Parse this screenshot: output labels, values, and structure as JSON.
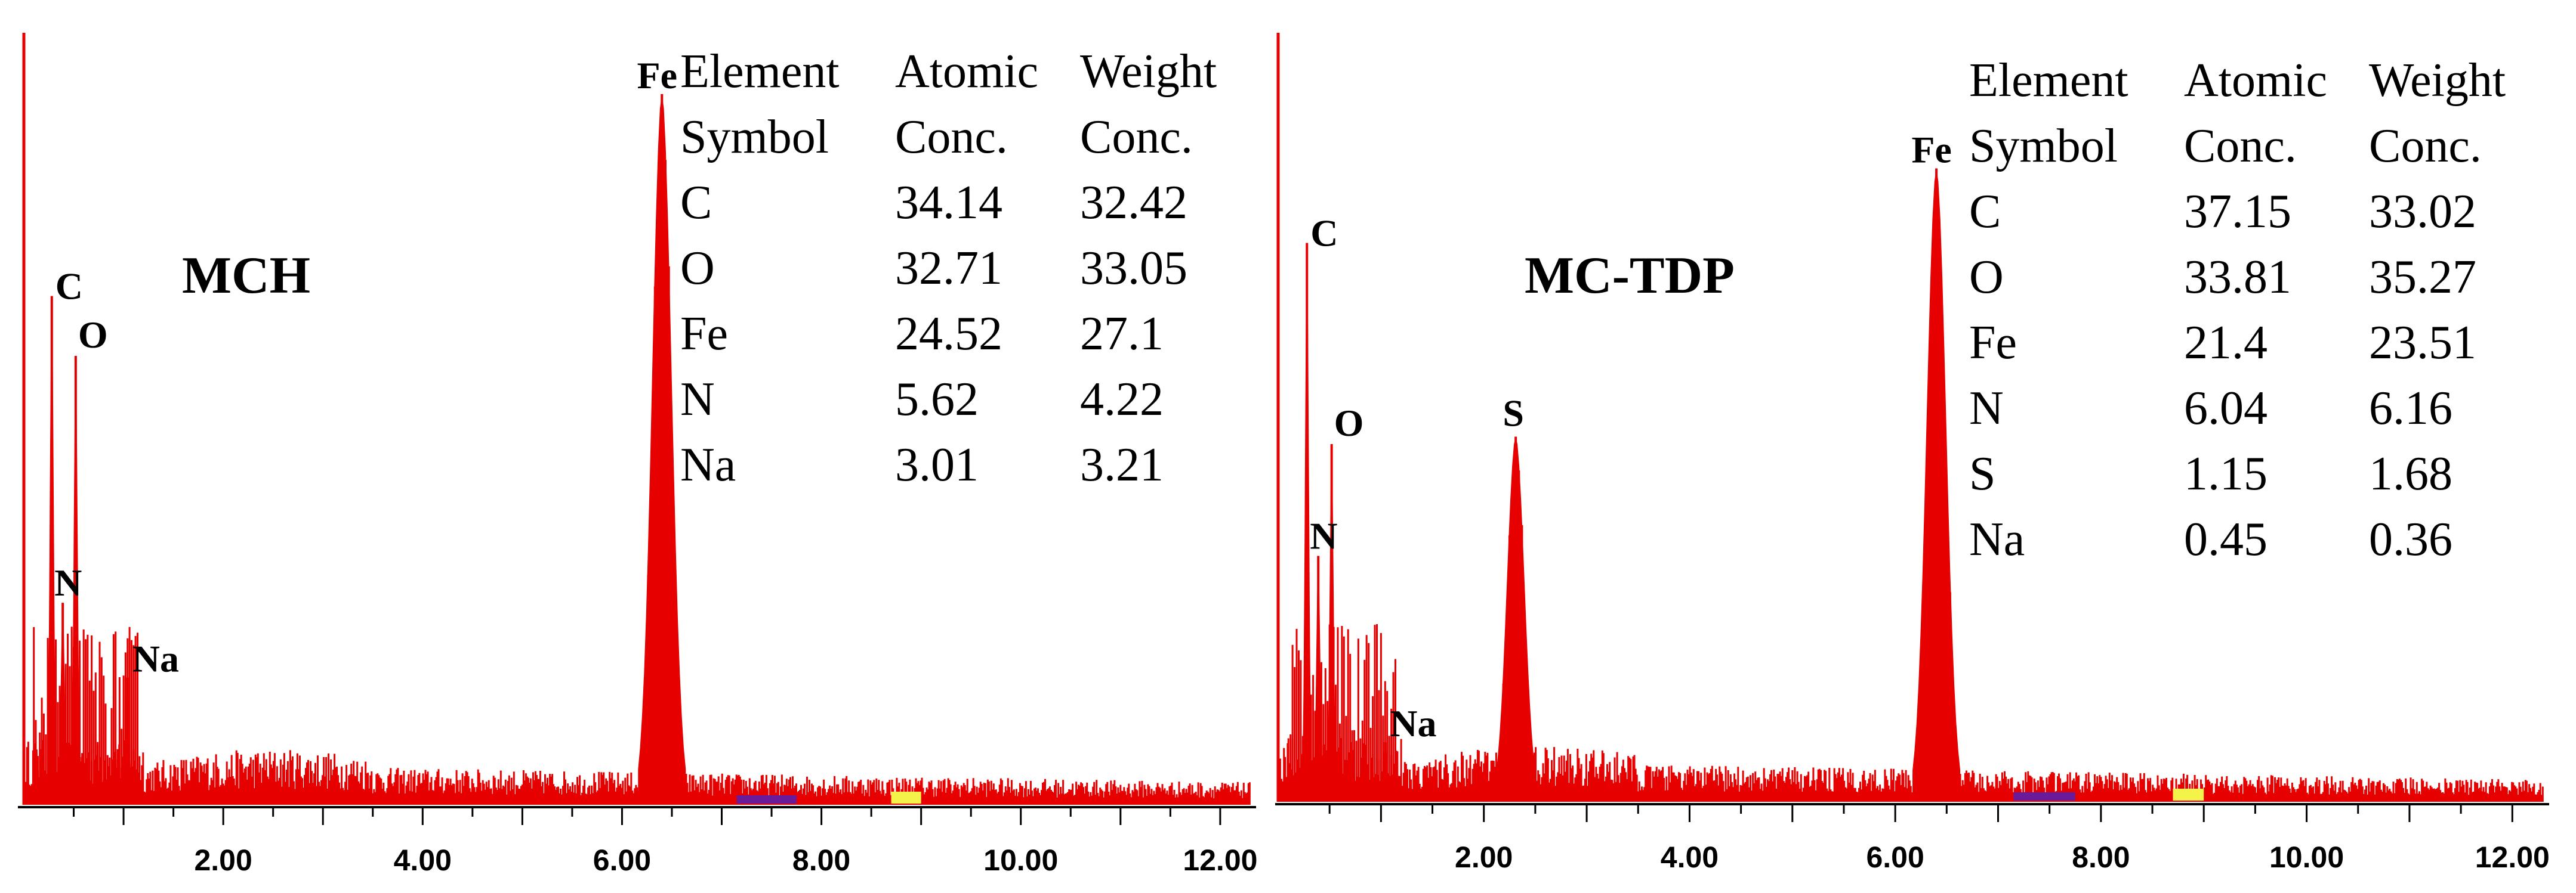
{
  "chart_data": [
    {
      "type": "bar",
      "title": "MCH",
      "xlim": [
        0,
        12.3
      ],
      "ylim": [
        0,
        100
      ],
      "x_ticks": [
        "2.00",
        "4.00",
        "6.00",
        "8.00",
        "10.00",
        "12.00"
      ],
      "x_tick_values": [
        2,
        4,
        6,
        8,
        10,
        12
      ],
      "peaks": [
        {
          "label": "C",
          "x": 0.28,
          "y": 68
        },
        {
          "label": "O",
          "x": 0.52,
          "y": 60
        },
        {
          "label": "N",
          "x": 0.39,
          "y": 27
        },
        {
          "label": "Na",
          "x": 1.04,
          "y": 17
        },
        {
          "label": "Fe",
          "x": 6.4,
          "y": 95
        }
      ],
      "colors": {
        "spectrum": "#e60000",
        "marker_purple": "#6a1b9a",
        "marker_yellow": "#f3f34a"
      },
      "table": {
        "headers": [
          [
            "Element",
            "Atomic",
            "Weight"
          ],
          [
            "Symbol",
            "Conc.",
            "Conc."
          ]
        ],
        "rows": [
          [
            "C",
            "34.14",
            "32.42"
          ],
          [
            "O",
            "32.71",
            "33.05"
          ],
          [
            "Fe",
            "24.52",
            "27.1"
          ],
          [
            "N",
            "5.62",
            "4.22"
          ],
          [
            "Na",
            "3.01",
            "3.21"
          ]
        ]
      }
    },
    {
      "type": "bar",
      "title": "MC-TDP",
      "xlim": [
        0,
        12.3
      ],
      "ylim": [
        0,
        100
      ],
      "x_ticks": [
        "2.00",
        "4.00",
        "6.00",
        "8.00",
        "10.00",
        "12.00"
      ],
      "x_tick_values": [
        2,
        4,
        6,
        8,
        10,
        12
      ],
      "peaks": [
        {
          "label": "C",
          "x": 0.28,
          "y": 75
        },
        {
          "label": "O",
          "x": 0.52,
          "y": 48
        },
        {
          "label": "N",
          "x": 0.39,
          "y": 33
        },
        {
          "label": "Na",
          "x": 1.04,
          "y": 8
        },
        {
          "label": "S",
          "x": 2.31,
          "y": 49
        },
        {
          "label": "Fe",
          "x": 6.4,
          "y": 85
        }
      ],
      "colors": {
        "spectrum": "#e60000",
        "marker_purple": "#6a1b9a",
        "marker_yellow": "#f3f34a"
      },
      "table": {
        "headers": [
          [
            "Element",
            "Atomic",
            "Weight"
          ],
          [
            "Symbol",
            "Conc.",
            "Conc."
          ]
        ],
        "rows": [
          [
            "C",
            "37.15",
            "33.02"
          ],
          [
            "O",
            "33.81",
            "35.27"
          ],
          [
            "Fe",
            "21.4",
            "23.51"
          ],
          [
            "N",
            "6.04",
            "6.16"
          ],
          [
            "S",
            "1.15",
            "1.68"
          ],
          [
            "Na",
            "0.45",
            "0.36"
          ]
        ]
      }
    }
  ]
}
